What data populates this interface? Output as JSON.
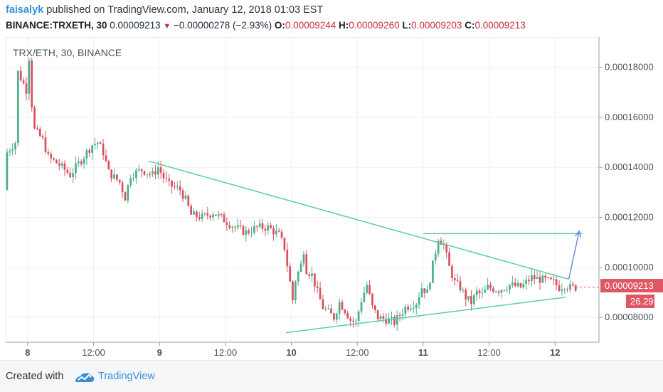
{
  "header": {
    "author": "faisalyk",
    "published": " published on TradingView.com, January 12, 2018 01:03 EST",
    "symbol": "BINANCE:TRXETH, 30",
    "last": "0.00009213",
    "change": "−0.00000278 (−2.93%)",
    "o_label": "O:",
    "o_value": "0.00009244",
    "h_label": "H:",
    "h_value": "0.00009260",
    "l_label": "L:",
    "l_value": "0.00009203",
    "c_label": "C:",
    "c_value": "0.00009213"
  },
  "chart_data": {
    "type": "candlestick",
    "title": "TRX/ETH, 30, BINANCE",
    "y_axis": {
      "ylim": [
        7.01e-05,
        0.0001921
      ],
      "ticks": [
        "0.00008000",
        "0.00010000",
        "0.00012000",
        "0.00014000",
        "0.00016000",
        "0.00018000"
      ],
      "tick_values": [
        8e-05,
        0.0001,
        0.00012,
        0.00014,
        0.00016,
        0.00018
      ]
    },
    "x_axis": {
      "labels": [
        "8",
        "12:00",
        "9",
        "12:00",
        "10",
        "12:00",
        "11",
        "12:00",
        "12"
      ],
      "positions_hours": [
        0,
        12,
        24,
        36,
        48,
        60,
        72,
        84,
        96
      ],
      "range_hours": [
        -4,
        104
      ]
    },
    "price_label": "0.00009213",
    "price_value": 9.213e-05,
    "volume_label": "26.29",
    "candle_interval_minutes": 30,
    "colors": {
      "up": "#4caf8a",
      "down": "#d9505f",
      "trend": "#5ccca8",
      "arrow": "#6b8ed6",
      "price": "#e05863"
    },
    "price_path": [
      [
        -4,
        0.000131
      ],
      [
        -3.5,
        0.000146
      ],
      [
        -2,
        0.00015
      ],
      [
        -1.5,
        0.000178
      ],
      [
        0,
        0.000171
      ],
      [
        0.5,
        0.000184
      ],
      [
        1,
        0.000165
      ],
      [
        1.5,
        0.000155
      ],
      [
        3,
        0.000151
      ],
      [
        4,
        0.000144
      ],
      [
        6,
        0.000141
      ],
      [
        8,
        0.000137
      ],
      [
        10,
        0.000143
      ],
      [
        12,
        0.000149
      ],
      [
        13,
        0.00015
      ],
      [
        14,
        0.000146
      ],
      [
        15,
        0.000138
      ],
      [
        17,
        0.000134
      ],
      [
        18,
        0.000128
      ],
      [
        19,
        0.000137
      ],
      [
        21,
        0.000139
      ],
      [
        23,
        0.000137
      ],
      [
        24,
        0.00014
      ],
      [
        25,
        0.000136
      ],
      [
        26,
        0.000133
      ],
      [
        28,
        0.000131
      ],
      [
        29,
        0.000127
      ],
      [
        30,
        0.000121
      ],
      [
        32,
        0.00012
      ],
      [
        34,
        0.000122
      ],
      [
        36,
        0.000119
      ],
      [
        38,
        0.000116
      ],
      [
        40,
        0.000114
      ],
      [
        42,
        0.000116
      ],
      [
        44,
        0.000116
      ],
      [
        46,
        0.000113
      ],
      [
        47,
        0.000108
      ],
      [
        48,
        9.4e-05
      ],
      [
        48.5,
        8.7e-05
      ],
      [
        49,
        9.5e-05
      ],
      [
        50,
        0.000101
      ],
      [
        50.5,
        0.000107
      ],
      [
        51,
        9.9e-05
      ],
      [
        52,
        9.7e-05
      ],
      [
        53,
        9e-05
      ],
      [
        54,
        8.4e-05
      ],
      [
        56,
        8e-05
      ],
      [
        57,
        8.6e-05
      ],
      [
        58,
        8.3e-05
      ],
      [
        59,
        7.9e-05
      ],
      [
        60,
        7.8e-05
      ],
      [
        61,
        8.7e-05
      ],
      [
        62,
        9.3e-05
      ],
      [
        63,
        8.4e-05
      ],
      [
        64,
        8e-05
      ],
      [
        66,
        7.9e-05
      ],
      [
        67,
        7.8e-05
      ],
      [
        68,
        8.1e-05
      ],
      [
        69,
        8.4e-05
      ],
      [
        71,
        8.6e-05
      ],
      [
        72,
        9.2e-05
      ],
      [
        73,
        9e-05
      ],
      [
        74,
        0.000101
      ],
      [
        75,
        0.000112
      ],
      [
        76,
        0.000109
      ],
      [
        77,
        0.0001
      ],
      [
        78,
        9.4e-05
      ],
      [
        79,
        9.2e-05
      ],
      [
        80,
        8.8e-05
      ],
      [
        81,
        8.6e-05
      ],
      [
        82,
        9e-05
      ],
      [
        83,
        8.9e-05
      ],
      [
        84,
        9.2e-05
      ],
      [
        86,
        9.1e-05
      ],
      [
        88,
        9.3e-05
      ],
      [
        90,
        9.2e-05
      ],
      [
        92,
        9.6e-05
      ],
      [
        94,
        9.5e-05
      ],
      [
        96,
        9.4e-05
      ],
      [
        97,
        9.2e-05
      ],
      [
        98,
        9.3e-05
      ],
      [
        99,
        9.2e-05
      ],
      [
        99.7,
        9.2e-05
      ]
    ],
    "drawings": {
      "upper_trendline": [
        [
          22,
          0.0001425
        ],
        [
          98.5,
          9.53e-05
        ]
      ],
      "lower_trendline": [
        [
          47,
          7.39e-05
        ],
        [
          98,
          8.81e-05
        ]
      ],
      "resistance_line": [
        [
          72,
          0.0001135
        ],
        [
          101,
          0.0001135
        ]
      ],
      "arrow": [
        [
          98.5,
          9.53e-05
        ],
        [
          100.4,
          0.0001145
        ]
      ]
    }
  },
  "footer": {
    "created_with": "Created with",
    "brand_name": "TradingView"
  }
}
